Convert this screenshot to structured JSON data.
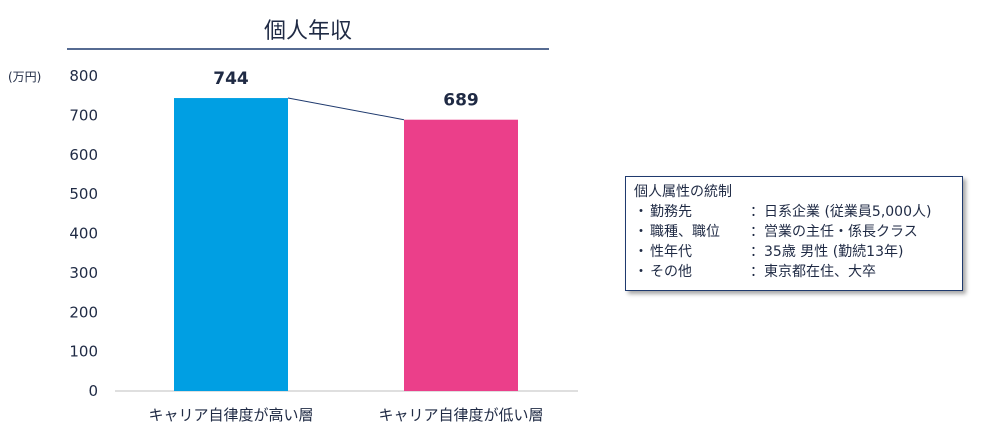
{
  "chart_data": {
    "type": "bar",
    "title": "個人年収",
    "unit": "(万円)",
    "categories": [
      "キャリア自律度が高い層",
      "キャリア自律度が低い層"
    ],
    "values": [
      744,
      689
    ],
    "data_labels": [
      "744",
      "689"
    ],
    "ylim": [
      0,
      800
    ],
    "yticks": [
      "0",
      "100",
      "200",
      "300",
      "400",
      "500",
      "600",
      "700",
      "800"
    ],
    "bar_colors": [
      "#009fe3",
      "#eb3f8a"
    ],
    "grid": false,
    "connector_line": true
  },
  "info_box": {
    "title": "個人属性の統制",
    "items": [
      {
        "bullet": "・",
        "label": "勤務先",
        "value": "：日系企業 (従業員5,000人)"
      },
      {
        "bullet": "・",
        "label": "職種、職位",
        "value": "：営業の主任・係長クラス"
      },
      {
        "bullet": "・",
        "label": "性年代",
        "value": "：35歳 男性 (勤続13年)"
      },
      {
        "bullet": "・",
        "label": "その他",
        "value": "：東京都在住、大卒"
      }
    ]
  }
}
